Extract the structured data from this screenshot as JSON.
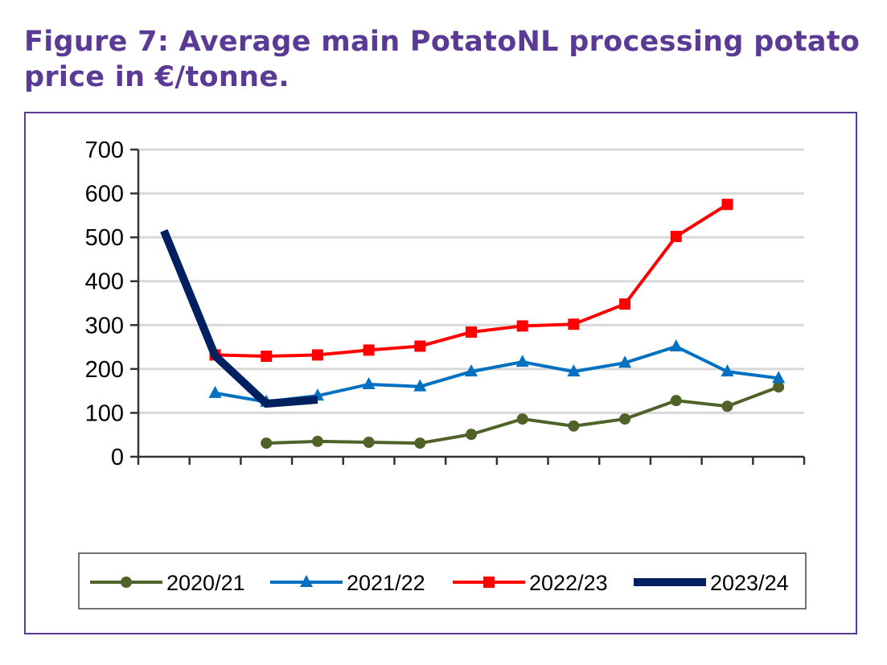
{
  "title": "Figure 7: Average main PotatoNL processing potato price in €/tonne.",
  "title_line1": "Figure 7: Average main PotatoNL processing potato",
  "title_line2": "price in €/tonne.",
  "chart_data": {
    "type": "line",
    "title": "Figure 7: Average main PotatoNL processing potato price in €/tonne.",
    "xlabel": "",
    "ylabel": "",
    "n_categories": 13,
    "ylim": [
      0,
      700
    ],
    "yticks": [
      0,
      100,
      200,
      300,
      400,
      500,
      600,
      700
    ],
    "grid": true,
    "legend": "bottom",
    "series": [
      {
        "name": "2020/21",
        "color": "#4f6228",
        "marker": "circle",
        "values": [
          null,
          null,
          31,
          35,
          33,
          31,
          51,
          86,
          70,
          86,
          128,
          115,
          159
        ]
      },
      {
        "name": "2021/22",
        "color": "#0070c0",
        "marker": "triangle",
        "values": [
          null,
          145,
          125,
          139,
          165,
          160,
          194,
          216,
          194,
          214,
          251,
          194,
          179
        ]
      },
      {
        "name": "2022/23",
        "color": "#ff0000",
        "marker": "square",
        "values": [
          null,
          232,
          229,
          232,
          243,
          252,
          284,
          298,
          302,
          348,
          502,
          575,
          null
        ]
      },
      {
        "name": "2023/24",
        "color": "#002060",
        "marker": "none",
        "values": [
          515,
          230,
          121,
          130,
          null,
          null,
          null,
          null,
          null,
          null,
          null,
          null,
          null
        ]
      }
    ]
  }
}
